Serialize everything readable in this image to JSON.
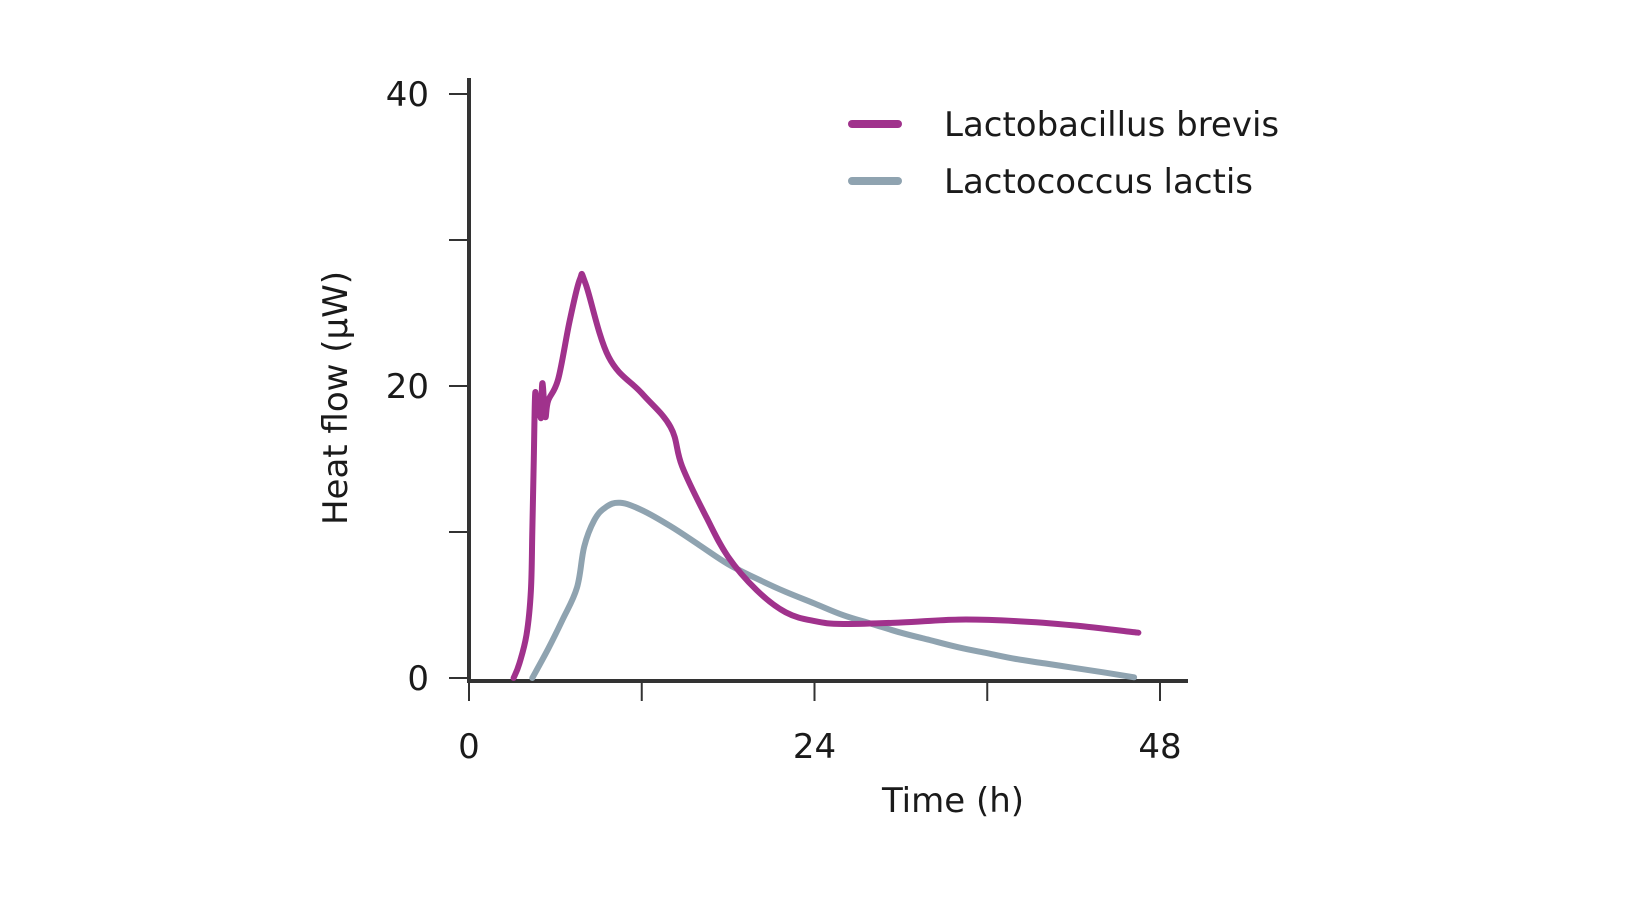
{
  "chart_data": {
    "type": "line",
    "title": "",
    "xlabel": "Time (h)",
    "ylabel": "Heat flow (μW)",
    "xlim": [
      0,
      50
    ],
    "ylim": [
      0,
      40
    ],
    "x_ticks": [
      0,
      12,
      24,
      36,
      48
    ],
    "x_tick_labels": [
      "0",
      "",
      "24",
      "",
      "48"
    ],
    "y_ticks": [
      0,
      10,
      20,
      30,
      40
    ],
    "y_tick_labels": [
      "0",
      "",
      "20",
      "",
      "40"
    ],
    "grid": false,
    "legend_position": "top-right",
    "series": [
      {
        "name": "Lactobacillus brevis",
        "color": "#a0328c",
        "points": [
          [
            3.1,
            0.0
          ],
          [
            3.5,
            1.0
          ],
          [
            4.0,
            3.0
          ],
          [
            4.3,
            6.0
          ],
          [
            4.4,
            10.0
          ],
          [
            4.5,
            15.0
          ],
          [
            4.6,
            19.5
          ],
          [
            4.75,
            18.0
          ],
          [
            4.9,
            19.3
          ],
          [
            5.0,
            17.8
          ],
          [
            5.1,
            20.2
          ],
          [
            5.3,
            17.9
          ],
          [
            5.5,
            19.0
          ],
          [
            6.2,
            20.5
          ],
          [
            7.0,
            24.5
          ],
          [
            7.7,
            27.3
          ],
          [
            8.1,
            27.0
          ],
          [
            9.7,
            22.0
          ],
          [
            12.0,
            19.5
          ],
          [
            14.0,
            17.2
          ],
          [
            14.8,
            14.5
          ],
          [
            16.5,
            11.0
          ],
          [
            18.0,
            8.3
          ],
          [
            20.0,
            6.0
          ],
          [
            22.0,
            4.5
          ],
          [
            24.0,
            3.9
          ],
          [
            26.0,
            3.7
          ],
          [
            30.0,
            3.8
          ],
          [
            34.0,
            4.0
          ],
          [
            38.0,
            3.9
          ],
          [
            42.0,
            3.6
          ],
          [
            46.5,
            3.1
          ]
        ]
      },
      {
        "name": "Lactococcus lactis",
        "color": "#8fa3b0",
        "points": [
          [
            4.4,
            0.0
          ],
          [
            5.5,
            2.0
          ],
          [
            6.5,
            4.0
          ],
          [
            7.5,
            6.2
          ],
          [
            8.0,
            9.0
          ],
          [
            8.7,
            10.8
          ],
          [
            9.5,
            11.7
          ],
          [
            10.5,
            12.0
          ],
          [
            12.0,
            11.5
          ],
          [
            14.0,
            10.4
          ],
          [
            16.0,
            9.1
          ],
          [
            18.0,
            7.8
          ],
          [
            20.0,
            6.8
          ],
          [
            22.0,
            5.9
          ],
          [
            24.0,
            5.1
          ],
          [
            26.0,
            4.3
          ],
          [
            28.0,
            3.7
          ],
          [
            30.0,
            3.1
          ],
          [
            32.0,
            2.6
          ],
          [
            34.0,
            2.1
          ],
          [
            36.0,
            1.7
          ],
          [
            38.0,
            1.3
          ],
          [
            40.0,
            1.0
          ],
          [
            42.0,
            0.7
          ],
          [
            44.0,
            0.4
          ],
          [
            46.2,
            0.05
          ]
        ]
      }
    ]
  }
}
